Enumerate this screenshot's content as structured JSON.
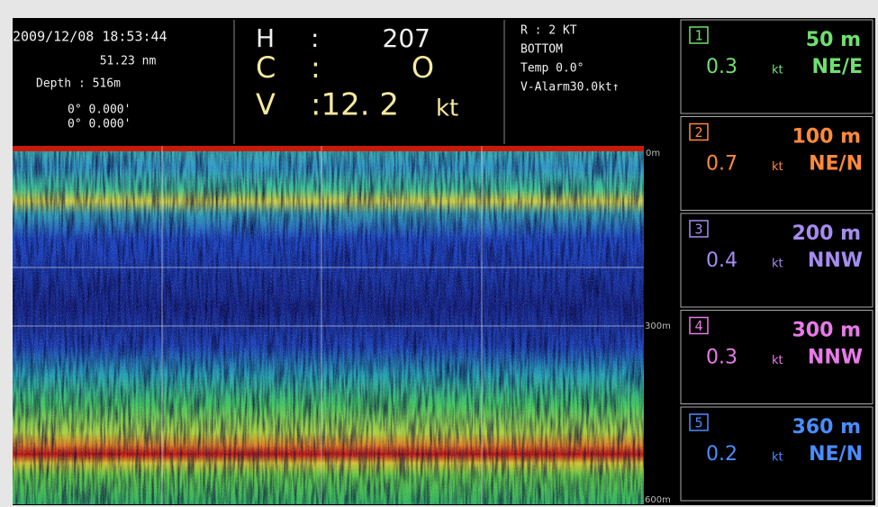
{
  "header": {
    "datetime": "2009/12/08 18:53:44",
    "distance": "51.23 nm",
    "depth": "Depth : 516m",
    "position": [
      "0° 0.000'",
      "0° 0.000'"
    ],
    "readouts": [
      {
        "label": "H",
        "separator": ":",
        "value": "207"
      },
      {
        "label": "C",
        "separator": ":",
        "value": "O"
      },
      {
        "label": "V",
        "separator": ":12. 2",
        "value": "kt"
      }
    ],
    "status": [
      "R : 2 KT",
      "BOTTOM",
      "Temp  0.0°",
      "V-Alarm30.0kt↑"
    ]
  },
  "echogram": {
    "depth_labels": [
      "0m",
      "300m",
      "600m"
    ]
  },
  "layers": [
    {
      "index": "1",
      "depth": "50 m",
      "speed": "0.3",
      "unit": "kt",
      "direction": "NE/E",
      "color": "#6fe06f"
    },
    {
      "index": "2",
      "depth": "100 m",
      "speed": "0.7",
      "unit": "kt",
      "direction": "NE/N",
      "color": "#ff8a3a"
    },
    {
      "index": "3",
      "depth": "200 m",
      "speed": "0.4",
      "unit": "kt",
      "direction": "NNW",
      "color": "#a58cf0"
    },
    {
      "index": "4",
      "depth": "300 m",
      "speed": "0.3",
      "unit": "kt",
      "direction": "NNW",
      "color": "#e77be7"
    },
    {
      "index": "5",
      "depth": "360 m",
      "speed": "0.2",
      "unit": "kt",
      "direction": "NE/N",
      "color": "#4a8cff"
    }
  ]
}
